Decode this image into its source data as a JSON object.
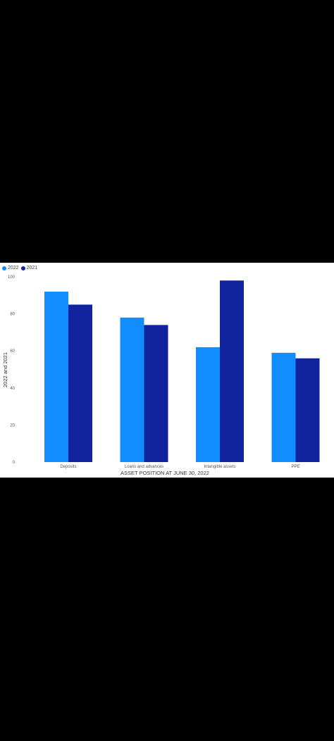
{
  "chart_data": {
    "type": "bar",
    "categories": [
      "Deposits",
      "Loans and advances",
      "Intangible assets",
      "PPE"
    ],
    "series": [
      {
        "name": "2022",
        "color": "#118DFF",
        "values": [
          92,
          78,
          62,
          59
        ]
      },
      {
        "name": "2021",
        "color": "#12239E",
        "values": [
          85,
          74,
          98,
          56
        ]
      }
    ],
    "xlabel": "ASSET POSITION AT JUNE 30, 2022",
    "ylabel": "2022 and 2021",
    "ylim": [
      0,
      100
    ],
    "yticks": [
      "0",
      "20",
      "40",
      "60",
      "80",
      "100"
    ],
    "legend_position": "top-left",
    "grid": false
  }
}
